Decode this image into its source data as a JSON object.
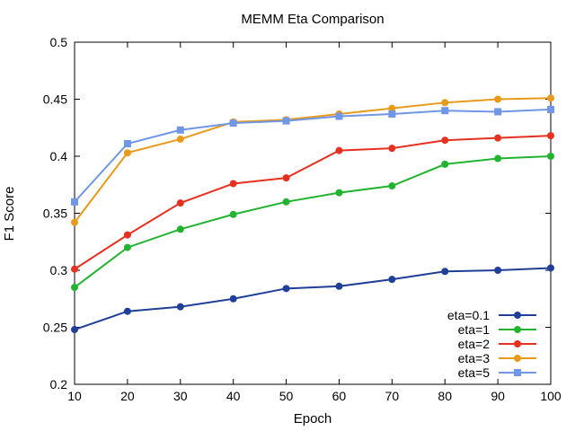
{
  "chart_data": {
    "type": "line",
    "title": "MEMM Eta Comparison",
    "xlabel": "Epoch",
    "ylabel": "F1 Score",
    "xlim": [
      10,
      100
    ],
    "ylim": [
      0.2,
      0.5
    ],
    "x_ticks": [
      "10",
      "20",
      "30",
      "40",
      "50",
      "60",
      "70",
      "80",
      "90",
      "100"
    ],
    "y_ticks": [
      "0.2",
      "0.25",
      "0.3",
      "0.35",
      "0.4",
      "0.45",
      "0.5"
    ],
    "legend_position": "bottom-right",
    "grid": false,
    "x": [
      10,
      20,
      30,
      40,
      50,
      60,
      70,
      80,
      90,
      100
    ],
    "series": [
      {
        "name": "eta=0.1",
        "color": "#1f3f99",
        "marker": "circle",
        "values": [
          0.248,
          0.264,
          0.268,
          0.275,
          0.284,
          0.286,
          0.292,
          0.299,
          0.3,
          0.302
        ]
      },
      {
        "name": "eta=1",
        "color": "#22b330",
        "marker": "circle",
        "values": [
          0.285,
          0.32,
          0.336,
          0.349,
          0.36,
          0.368,
          0.374,
          0.393,
          0.398,
          0.4
        ]
      },
      {
        "name": "eta=2",
        "color": "#e63020",
        "marker": "circle",
        "values": [
          0.301,
          0.331,
          0.359,
          0.376,
          0.381,
          0.405,
          0.407,
          0.414,
          0.416,
          0.418
        ]
      },
      {
        "name": "eta=3",
        "color": "#e89a1a",
        "marker": "circle",
        "values": [
          0.342,
          0.403,
          0.415,
          0.43,
          0.432,
          0.437,
          0.442,
          0.447,
          0.45,
          0.451
        ]
      },
      {
        "name": "eta=5",
        "color": "#6f97e6",
        "marker": "square",
        "values": [
          0.36,
          0.411,
          0.423,
          0.429,
          0.431,
          0.435,
          0.437,
          0.44,
          0.439,
          0.441
        ]
      }
    ]
  }
}
